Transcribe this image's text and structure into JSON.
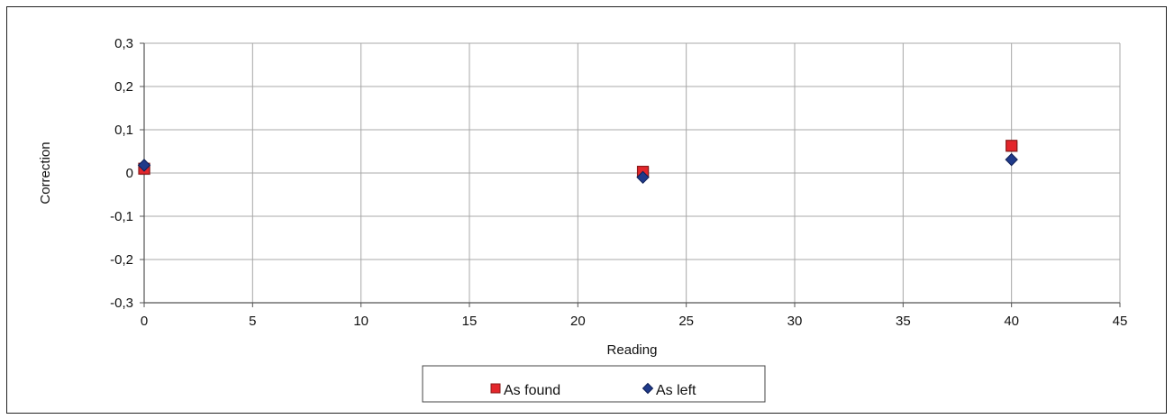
{
  "chart_data": {
    "type": "scatter",
    "xlabel": "Reading",
    "ylabel": "Correction",
    "xlim": [
      0,
      45
    ],
    "ylim": [
      -0.3,
      0.3
    ],
    "x_ticks": [
      0,
      5,
      10,
      15,
      20,
      25,
      30,
      35,
      40,
      45
    ],
    "x_tick_labels": [
      "0",
      "5",
      "10",
      "15",
      "20",
      "25",
      "30",
      "35",
      "40",
      "45"
    ],
    "y_ticks": [
      0.3,
      0.2,
      0.1,
      0,
      -0.1,
      -0.2,
      -0.3
    ],
    "y_tick_labels": [
      "0,3",
      "0,2",
      "0,1",
      "0",
      "-0,1",
      "-0,2",
      "-0,3"
    ],
    "grid": true,
    "legend_position": "bottom",
    "series": [
      {
        "name": "As found",
        "marker": "square",
        "color": "#e3262b",
        "edge_color": "#8a1a1a",
        "x": [
          0,
          23,
          40
        ],
        "y": [
          0.01,
          0.003,
          0.063
        ]
      },
      {
        "name": "As left",
        "marker": "diamond",
        "color": "#1f3a8a",
        "edge_color": "#0f1f55",
        "x": [
          0,
          23,
          40
        ],
        "y": [
          0.018,
          -0.01,
          0.031
        ]
      }
    ]
  }
}
